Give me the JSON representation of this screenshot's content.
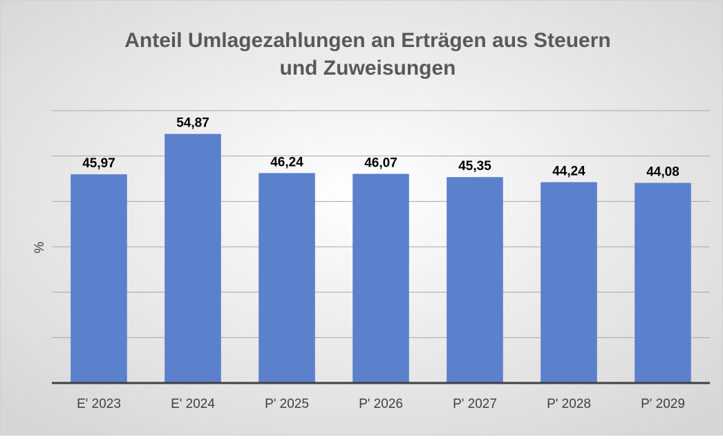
{
  "chart_data": {
    "type": "bar",
    "title": [
      "Anteil Umlagezahlungen an Erträgen aus Steuern",
      "und Zuweisungen"
    ],
    "y_label": "%",
    "categories": [
      "E' 2023",
      "E' 2024",
      "P' 2025",
      "P' 2026",
      "P' 2027",
      "P' 2028",
      "P' 2029"
    ],
    "values": [
      45.97,
      54.87,
      46.24,
      46.07,
      45.35,
      44.24,
      44.08
    ],
    "value_labels": [
      "45,97",
      "54,87",
      "46,24",
      "46,07",
      "45,35",
      "44,24",
      "44,08"
    ],
    "color": "#5b80cc",
    "ylim": [
      0,
      60
    ],
    "yticks": [
      0,
      10,
      20,
      30,
      40,
      50,
      60
    ],
    "grid": true
  }
}
